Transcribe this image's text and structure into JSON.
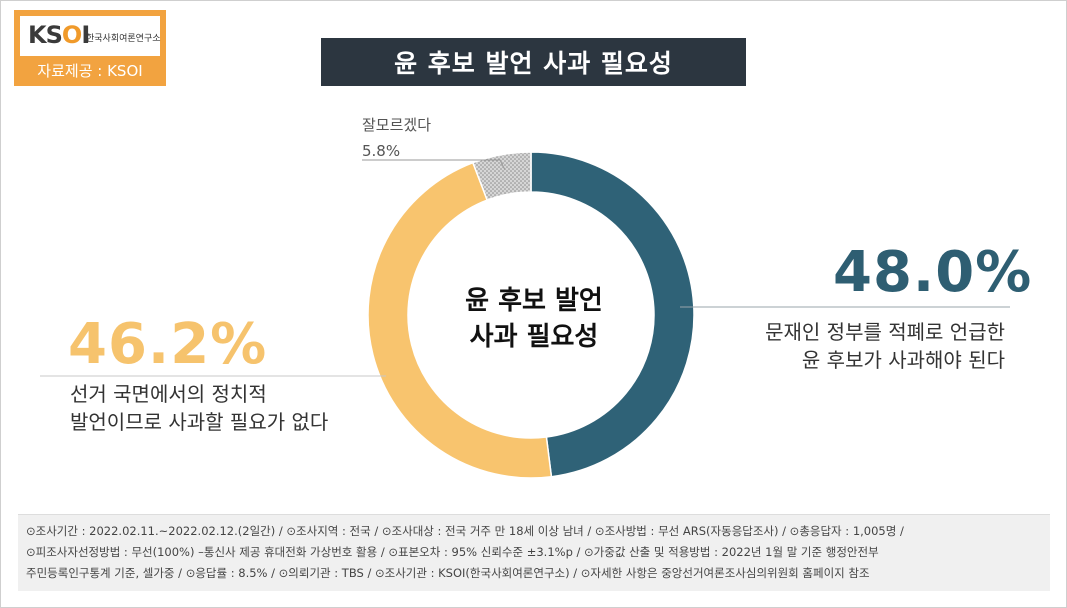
{
  "logo": {
    "mark_k": "K",
    "mark_s": "S",
    "mark_o": "O",
    "mark_i": "I",
    "org_name": "한국사회여론연구소",
    "source": "자료제공 : KSOI"
  },
  "title": "윤 후보 발언 사과 필요성",
  "chart_data": {
    "type": "pie",
    "title": "윤 후보 발언 사과 필요성",
    "center_label_line1": "윤 후보 발언",
    "center_label_line2": "사과 필요성",
    "categories": [
      "문재인 정부를 적폐로 언급한 윤 후보가 사과해야 된다",
      "선거 국면에서의 정치적 발언이므로 사과할 필요가 없다",
      "잘모르겠다"
    ],
    "values": [
      48.0,
      46.2,
      5.8
    ],
    "colors": [
      "#2f6277",
      "#f8c46e",
      "#d8d8d8"
    ]
  },
  "labels": {
    "right_value": "48.0%",
    "right_desc_line1": "문재인 정부를 적폐로 언급한",
    "right_desc_line2": "윤 후보가 사과해야 된다",
    "left_value": "46.2%",
    "left_desc_line1": "선거 국면에서의 정치적",
    "left_desc_line2": "발언이므로 사과할 필요가 없다",
    "unknown_name": "잘모르겠다",
    "unknown_value": "5.8%"
  },
  "footer": {
    "line1": "⊙조사기간 : 2022.02.11.~2022.02.12.(2일간) / ⊙조사지역 : 전국 / ⊙조사대상 : 전국 거주 만 18세 이상 남녀 / ⊙조사방법 : 무선 ARS(자동응답조사) / ⊙총응답자 : 1,005명 /",
    "line2": "⊙피조사자선정방법 : 무선(100%) –통신사 제공 휴대전화 가상번호 활용 / ⊙표본오차 : 95% 신뢰수준 ±3.1%p / ⊙가중값 산출 및 적용방법 : 2022년 1월 말 기준 행정안전부",
    "line3": "주민등록인구통계 기준, 셀가중 / ⊙응답률 : 8.5% / ⊙의뢰기관 : TBS / ⊙조사기관 : KSOI(한국사회여론연구소) / ⊙자세한 사항은 중앙선거여론조사심의위원회 홈페이지 참조"
  }
}
